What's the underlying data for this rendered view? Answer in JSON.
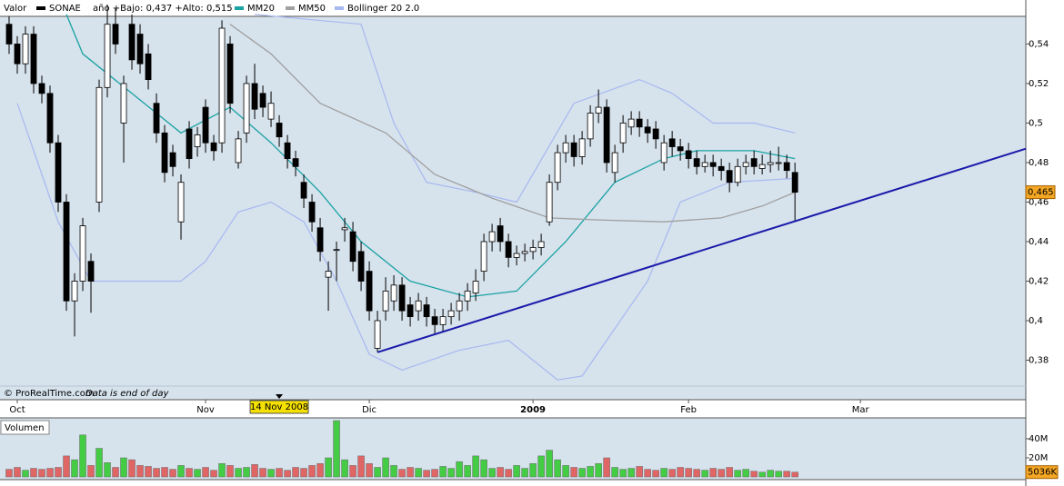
{
  "chart_data": {
    "type": "candlestick",
    "header_label": "Valor",
    "series_name": "SONAE",
    "series_color": "#000000",
    "stats_text": "año +Bajo: 0,437 +Alto: 0,515",
    "xlim": [
      -1,
      124.2
    ],
    "xticks": [
      {
        "value": 1,
        "label": "Oct"
      },
      {
        "value": 24,
        "label": "Nov"
      },
      {
        "value": 44,
        "label": "Dic"
      },
      {
        "value": 64,
        "label": "2009"
      },
      {
        "value": 83,
        "label": "Feb"
      },
      {
        "value": 104,
        "label": "Mar"
      }
    ],
    "ylim": [
      0.36,
      0.554
    ],
    "yticks": [
      {
        "value": 0.38,
        "label": "0,38"
      },
      {
        "value": 0.4,
        "label": "0,4"
      },
      {
        "value": 0.42,
        "label": "0,42"
      },
      {
        "value": 0.44,
        "label": "0,44"
      },
      {
        "value": 0.46,
        "label": "0,46"
      },
      {
        "value": 0.48,
        "label": "0,48"
      },
      {
        "value": 0.5,
        "label": "0,5"
      },
      {
        "value": 0.52,
        "label": "0,52"
      },
      {
        "value": 0.54,
        "label": "0,54"
      }
    ],
    "grid": false,
    "up_color": "#ffffff",
    "down_color": "#000000",
    "ohlc": [
      [
        0.55,
        0.554,
        0.535,
        0.54
      ],
      [
        0.54,
        0.544,
        0.525,
        0.53
      ],
      [
        0.53,
        0.549,
        0.525,
        0.545
      ],
      [
        0.545,
        0.549,
        0.515,
        0.52
      ],
      [
        0.52,
        0.524,
        0.51,
        0.515
      ],
      [
        0.515,
        0.519,
        0.485,
        0.49
      ],
      [
        0.49,
        0.494,
        0.455,
        0.46
      ],
      [
        0.46,
        0.464,
        0.405,
        0.41
      ],
      [
        0.41,
        0.424,
        0.392,
        0.42
      ],
      [
        0.42,
        0.452,
        0.415,
        0.448
      ],
      [
        0.43,
        0.434,
        0.404,
        0.42
      ],
      [
        0.46,
        0.522,
        0.455,
        0.518
      ],
      [
        0.518,
        0.56,
        0.513,
        0.55
      ],
      [
        0.55,
        0.558,
        0.535,
        0.54
      ],
      [
        0.5,
        0.524,
        0.48,
        0.52
      ],
      [
        0.55,
        0.555,
        0.527,
        0.532
      ],
      [
        0.545,
        0.55,
        0.525,
        0.53
      ],
      [
        0.535,
        0.54,
        0.517,
        0.522
      ],
      [
        0.51,
        0.515,
        0.49,
        0.495
      ],
      [
        0.495,
        0.499,
        0.47,
        0.475
      ],
      [
        0.485,
        0.489,
        0.473,
        0.478
      ],
      [
        0.45,
        0.474,
        0.441,
        0.47
      ],
      [
        0.497,
        0.501,
        0.477,
        0.482
      ],
      [
        0.488,
        0.498,
        0.483,
        0.494
      ],
      [
        0.508,
        0.512,
        0.485,
        0.49
      ],
      [
        0.49,
        0.494,
        0.481,
        0.486
      ],
      [
        0.49,
        0.552,
        0.485,
        0.548
      ],
      [
        0.54,
        0.544,
        0.505,
        0.51
      ],
      [
        0.48,
        0.496,
        0.477,
        0.492
      ],
      [
        0.495,
        0.524,
        0.49,
        0.52
      ],
      [
        0.52,
        0.53,
        0.502,
        0.507
      ],
      [
        0.515,
        0.519,
        0.503,
        0.508
      ],
      [
        0.502,
        0.516,
        0.498,
        0.51
      ],
      [
        0.5,
        0.504,
        0.488,
        0.493
      ],
      [
        0.49,
        0.494,
        0.477,
        0.482
      ],
      [
        0.482,
        0.486,
        0.473,
        0.478
      ],
      [
        0.47,
        0.474,
        0.457,
        0.462
      ],
      [
        0.46,
        0.464,
        0.445,
        0.45
      ],
      [
        0.447,
        0.452,
        0.43,
        0.435
      ],
      [
        0.422,
        0.43,
        0.405,
        0.425
      ],
      [
        0.436,
        0.44,
        0.42,
        0.436
      ],
      [
        0.446,
        0.452,
        0.44,
        0.447
      ],
      [
        0.445,
        0.45,
        0.425,
        0.43
      ],
      [
        0.435,
        0.44,
        0.415,
        0.42
      ],
      [
        0.425,
        0.43,
        0.4,
        0.405
      ],
      [
        0.386,
        0.405,
        0.384,
        0.4
      ],
      [
        0.405,
        0.422,
        0.4,
        0.415
      ],
      [
        0.41,
        0.423,
        0.405,
        0.418
      ],
      [
        0.418,
        0.422,
        0.4,
        0.405
      ],
      [
        0.408,
        0.412,
        0.397,
        0.402
      ],
      [
        0.405,
        0.414,
        0.4,
        0.41
      ],
      [
        0.408,
        0.412,
        0.397,
        0.402
      ],
      [
        0.402,
        0.406,
        0.393,
        0.398
      ],
      [
        0.398,
        0.406,
        0.394,
        0.402
      ],
      [
        0.402,
        0.409,
        0.398,
        0.405
      ],
      [
        0.405,
        0.414,
        0.4,
        0.41
      ],
      [
        0.41,
        0.419,
        0.405,
        0.415
      ],
      [
        0.414,
        0.426,
        0.41,
        0.42
      ],
      [
        0.425,
        0.444,
        0.42,
        0.44
      ],
      [
        0.44,
        0.449,
        0.435,
        0.445
      ],
      [
        0.448,
        0.452,
        0.435,
        0.44
      ],
      [
        0.44,
        0.444,
        0.427,
        0.432
      ],
      [
        0.432,
        0.438,
        0.428,
        0.434
      ],
      [
        0.434,
        0.439,
        0.43,
        0.435
      ],
      [
        0.435,
        0.441,
        0.431,
        0.437
      ],
      [
        0.437,
        0.444,
        0.433,
        0.44
      ],
      [
        0.45,
        0.474,
        0.448,
        0.47
      ],
      [
        0.47,
        0.489,
        0.466,
        0.485
      ],
      [
        0.485,
        0.494,
        0.48,
        0.49
      ],
      [
        0.49,
        0.494,
        0.478,
        0.483
      ],
      [
        0.483,
        0.496,
        0.479,
        0.492
      ],
      [
        0.492,
        0.509,
        0.488,
        0.505
      ],
      [
        0.505,
        0.517,
        0.5,
        0.508
      ],
      [
        0.508,
        0.512,
        0.475,
        0.48
      ],
      [
        0.475,
        0.489,
        0.47,
        0.485
      ],
      [
        0.49,
        0.504,
        0.485,
        0.5
      ],
      [
        0.498,
        0.506,
        0.494,
        0.502
      ],
      [
        0.502,
        0.506,
        0.493,
        0.498
      ],
      [
        0.498,
        0.502,
        0.49,
        0.495
      ],
      [
        0.497,
        0.501,
        0.487,
        0.492
      ],
      [
        0.48,
        0.494,
        0.476,
        0.49
      ],
      [
        0.492,
        0.496,
        0.483,
        0.488
      ],
      [
        0.488,
        0.492,
        0.481,
        0.486
      ],
      [
        0.486,
        0.49,
        0.477,
        0.482
      ],
      [
        0.482,
        0.486,
        0.474,
        0.478
      ],
      [
        0.478,
        0.484,
        0.475,
        0.48
      ],
      [
        0.48,
        0.484,
        0.473,
        0.478
      ],
      [
        0.478,
        0.482,
        0.471,
        0.476
      ],
      [
        0.476,
        0.48,
        0.465,
        0.47
      ],
      [
        0.47,
        0.482,
        0.468,
        0.478
      ],
      [
        0.478,
        0.484,
        0.474,
        0.48
      ],
      [
        0.482,
        0.486,
        0.474,
        0.478
      ],
      [
        0.477,
        0.484,
        0.474,
        0.479
      ],
      [
        0.479,
        0.486,
        0.475,
        0.48
      ],
      [
        0.48,
        0.488,
        0.476,
        0.48
      ],
      [
        0.48,
        0.484,
        0.472,
        0.476
      ],
      [
        0.475,
        0.48,
        0.45,
        0.465
      ]
    ],
    "lines": [
      {
        "name": "MM20",
        "color": "#1aa3a3",
        "x": [
          7,
          9,
          15,
          21,
          27,
          32,
          38,
          43,
          49,
          56,
          62,
          68,
          74,
          80,
          84,
          91,
          96
        ],
        "values": [
          0.555,
          0.535,
          0.515,
          0.495,
          0.508,
          0.49,
          0.465,
          0.44,
          0.42,
          0.412,
          0.415,
          0.44,
          0.47,
          0.482,
          0.486,
          0.486,
          0.482
        ]
      },
      {
        "name": "MM50",
        "color": "#a0a0a0",
        "x": [
          27,
          32,
          38,
          46,
          52,
          59,
          66,
          72,
          80,
          87,
          92,
          96
        ],
        "values": [
          0.55,
          0.535,
          0.51,
          0.495,
          0.474,
          0.462,
          0.452,
          0.451,
          0.45,
          0.452,
          0.458,
          0.465
        ]
      }
    ],
    "bollinger": {
      "name": "Bollinger 20 2.0",
      "color": "#a8b8f0",
      "upper": {
        "x": [
          30,
          43,
          47,
          51,
          57,
          62,
          69,
          77,
          81,
          86,
          91,
          96
        ],
        "values": [
          0.555,
          0.55,
          0.5,
          0.47,
          0.465,
          0.46,
          0.51,
          0.522,
          0.515,
          0.5,
          0.5,
          0.495
        ]
      },
      "lower": {
        "x": [
          1,
          6,
          10,
          21,
          24,
          28,
          32,
          36,
          40,
          44,
          48,
          55,
          61,
          67,
          70,
          78,
          82,
          88,
          96
        ],
        "values": [
          0.51,
          0.45,
          0.42,
          0.42,
          0.43,
          0.455,
          0.46,
          0.45,
          0.42,
          0.383,
          0.375,
          0.385,
          0.39,
          0.37,
          0.372,
          0.42,
          0.46,
          0.47,
          0.472
        ]
      }
    },
    "trendline": {
      "color": "#1a1aaa",
      "x": [
        45,
        124.2
      ],
      "values": [
        0.384,
        0.487
      ]
    },
    "price_marker": {
      "value": 0.465,
      "label": "0,465"
    },
    "cursor": {
      "x": 33,
      "label": "14 Nov 2008"
    },
    "footer": "© ProRealTime.com",
    "footer_note": "Data is end of day",
    "volume": {
      "title": "Volumen",
      "ylim": [
        0,
        60
      ],
      "yticks": [
        {
          "value": 20,
          "label": "20M"
        },
        {
          "value": 40,
          "label": "40M"
        }
      ],
      "up_color": "#44cc44",
      "down_color": "#e06666",
      "values": [
        8,
        10,
        7,
        9,
        8,
        9,
        10,
        22,
        18,
        44,
        12,
        30,
        15,
        10,
        20,
        18,
        12,
        11,
        9,
        10,
        8,
        12,
        9,
        8,
        10,
        7,
        14,
        12,
        9,
        10,
        13,
        9,
        8,
        9,
        7,
        10,
        9,
        12,
        14,
        20,
        59,
        18,
        12,
        22,
        14,
        10,
        20,
        12,
        8,
        10,
        9,
        7,
        8,
        11,
        9,
        16,
        12,
        22,
        18,
        9,
        10,
        8,
        12,
        9,
        14,
        22,
        28,
        18,
        12,
        10,
        9,
        11,
        14,
        20,
        10,
        8,
        9,
        11,
        8,
        7,
        9,
        8,
        10,
        9,
        8,
        7,
        9,
        8,
        10,
        7,
        8,
        6,
        5,
        7,
        6,
        6,
        5
      ],
      "last": {
        "value": 5.036,
        "label": "5036K"
      }
    }
  }
}
